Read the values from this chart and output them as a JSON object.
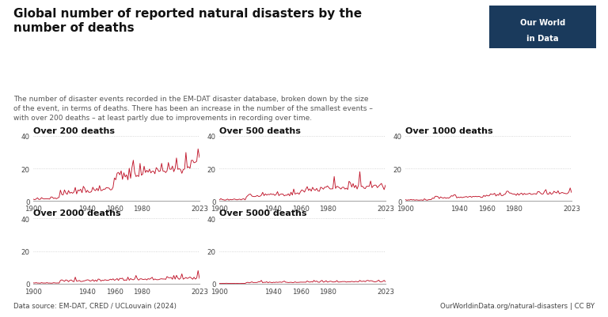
{
  "title": "Global number of reported natural disasters by the\nnumber of deaths",
  "subtitle": "The number of disaster events recorded in the EM-DAT disaster database, broken down by the size\nof the event, in terms of deaths. There has been an increase in the number of the smallest events –\nwith over 200 deaths – at least partly due to improvements in recording over time.",
  "data_source": "Data source: EM-DAT, CRED / UCLouvain (2024)",
  "url": "OurWorldinData.org/natural-disasters | CC BY",
  "line_color": "#C0152A",
  "bg_color": "#ffffff",
  "panel_bg": "#ffffff",
  "subtitle_color": "#555555",
  "title_color": "#111111",
  "grid_color": "#cccccc",
  "logo_bg": "#1a3a5c",
  "panels": [
    {
      "label": "Over 200 deaths",
      "ylim": [
        0,
        40
      ],
      "yticks": [
        0,
        20,
        40
      ]
    },
    {
      "label": "Over 500 deaths",
      "ylim": [
        0,
        40
      ],
      "yticks": [
        0,
        20,
        40
      ]
    },
    {
      "label": "Over 1000 deaths",
      "ylim": [
        0,
        40
      ],
      "yticks": [
        0,
        20,
        40
      ]
    },
    {
      "label": "Over 2000 deaths",
      "ylim": [
        0,
        40
      ],
      "yticks": [
        0,
        20,
        40
      ]
    },
    {
      "label": "Over 5000 deaths",
      "ylim": [
        0,
        40
      ],
      "yticks": [
        0,
        20,
        40
      ]
    }
  ],
  "year_start": 1900,
  "year_end": 2023,
  "xticks": [
    1900,
    1940,
    1960,
    1980,
    2023
  ]
}
